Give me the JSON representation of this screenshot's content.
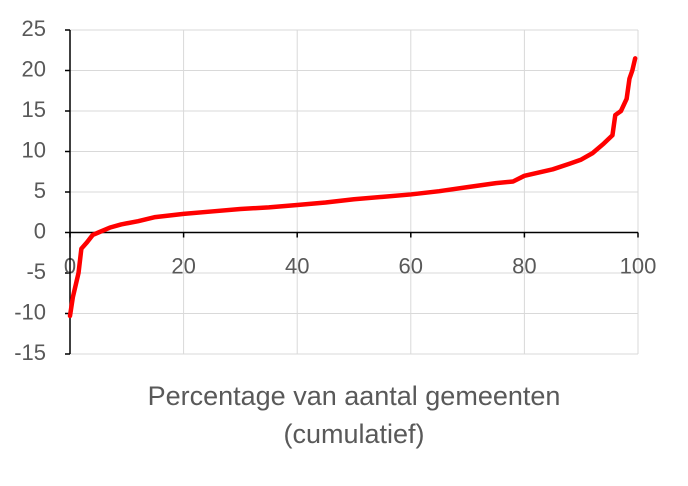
{
  "chart_data": {
    "type": "line",
    "xlabel": [
      "Percentage van aantal gemeenten",
      "(cumulatief)"
    ],
    "xlim": [
      0,
      100
    ],
    "xticks": [
      0,
      20,
      40,
      60,
      80,
      100
    ],
    "ylim": [
      -15,
      25
    ],
    "yticks": [
      -15,
      -10,
      -5,
      0,
      5,
      10,
      15,
      20,
      25
    ],
    "grid": true,
    "series": [
      {
        "color": "#ff0000",
        "x": [
          0,
          0.5,
          1,
          1.5,
          2,
          3,
          4,
          5,
          7,
          9,
          12,
          15,
          20,
          25,
          30,
          35,
          40,
          45,
          50,
          55,
          60,
          65,
          70,
          75,
          78,
          80,
          85,
          88,
          90,
          92,
          94,
          95.5,
          96,
          97,
          98,
          98.5,
          99,
          99.5
        ],
        "values": [
          -10.3,
          -8,
          -6.5,
          -5,
          -2,
          -1.2,
          -0.3,
          0,
          0.6,
          1.0,
          1.4,
          1.9,
          2.3,
          2.6,
          2.9,
          3.1,
          3.4,
          3.7,
          4.1,
          4.4,
          4.7,
          5.1,
          5.6,
          6.1,
          6.3,
          7.0,
          7.8,
          8.5,
          9.0,
          9.8,
          11,
          12,
          14.5,
          15,
          16.5,
          19,
          20,
          21.5
        ]
      }
    ]
  }
}
